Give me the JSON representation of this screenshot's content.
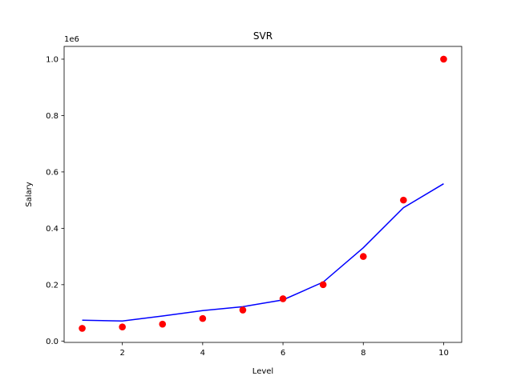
{
  "chart_data": {
    "type": "scatter",
    "title": "SVR",
    "xlabel": "Level",
    "ylabel": "Salary",
    "y_offset_label": "1e6",
    "xlim": [
      0.55,
      10.45
    ],
    "ylim": [
      -0.0048,
      1.0453
    ],
    "x_ticks": [
      2,
      4,
      6,
      8,
      10
    ],
    "x_tick_labels": [
      "2",
      "4",
      "6",
      "8",
      "10"
    ],
    "y_ticks": [
      0.0,
      0.2,
      0.4,
      0.6,
      0.8,
      1.0
    ],
    "y_tick_labels": [
      "0.0",
      "0.2",
      "0.4",
      "0.6",
      "0.8",
      "1.0"
    ],
    "grid": false,
    "series": [
      {
        "kind": "scatter",
        "color": "#ff0000",
        "x": [
          1,
          2,
          3,
          4,
          5,
          6,
          7,
          8,
          9,
          10
        ],
        "y": [
          0.045,
          0.05,
          0.06,
          0.08,
          0.11,
          0.15,
          0.2,
          0.3,
          0.5,
          1.0
        ]
      },
      {
        "kind": "line",
        "color": "#0000ff",
        "x": [
          1,
          2,
          3,
          4,
          5,
          6,
          7,
          8,
          9,
          10
        ],
        "y": [
          0.074,
          0.071,
          0.089,
          0.108,
          0.122,
          0.146,
          0.209,
          0.331,
          0.473,
          0.558
        ]
      }
    ]
  }
}
